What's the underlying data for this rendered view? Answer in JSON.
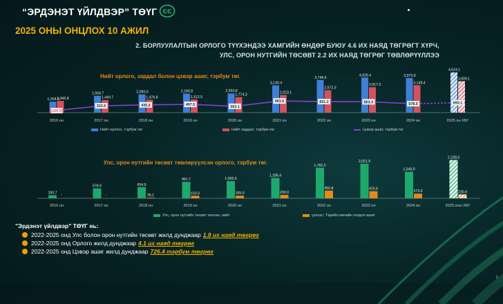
{
  "header": {
    "title": "“ЭРДЭНЭТ ҮЙЛДВЭР” ТӨҮГ",
    "slide_title": "2025 ОНЫ ОНЦЛОХ 10 АЖИЛ"
  },
  "headline": {
    "line1": "2. БОРЛУУЛАЛТЫН ОРЛОГО ТҮҮХЭНДЭЭ ХАМГИЙН ӨНДӨР БУЮУ 4.6 ИХ НАЯД ТӨГРӨГТ ХҮРЧ,",
    "line2": "УЛС, ОРОН НУТГИЙН ТӨСӨВТ 2.2 ИХ НАЯД ТӨГРӨГ ТӨВЛӨРҮҮЛЛЭЭ"
  },
  "colors": {
    "accent": "#f0b400",
    "revenue": "#3f7fd6",
    "costs": "#d4515f",
    "net_profit": "#8a3fd0",
    "budget": "#1fa86c",
    "dividend": "#e58a1a"
  },
  "chart_data": [
    {
      "type": "bar",
      "title": "Нийт орлого, зардал болон цэвэр ашиг, тэрбум төг.",
      "categories": [
        "2016 он",
        "2017 он",
        "2018 он",
        "2019 он",
        "2020 он",
        "2021 он",
        "2022 он",
        "2023 он",
        "2024 он",
        "2025 он ХБГ"
      ],
      "series": [
        {
          "name": "Нийт орлого, тэрбум.төг",
          "type": "bar",
          "values": [
            1258.0,
            1934.7,
            2090.0,
            2189.8,
            2203.8,
            3130.4,
            3746.6,
            4026.4,
            3973.9,
            4624.1
          ]
        },
        {
          "name": "Нийт зардал, тэрбум.төг",
          "type": "bar",
          "values": [
            1345.8,
            1449.7,
            1476.8,
            1512.5,
            1774.3,
            2023.1,
            2572.3,
            2917.3,
            3149.4,
            3609.1
          ]
        },
        {
          "name": "Цэвэр ашиг, тэрбум.төг",
          "type": "line",
          "values": [
            -126.5,
            323.5,
            435.5,
            497.5,
            263.1,
            903.5,
            831.2,
            803.0,
            578.5,
            693.1
          ]
        }
      ],
      "value_labels": {
        "revenue": [
          "1,258.0",
          "1,934.7",
          "2,090.0",
          "2,189.8",
          "2,203.8",
          "3,130.4",
          "3,746.6",
          "4,026.4",
          "3,973.9",
          "4,624.1"
        ],
        "costs": [
          "1,345.8",
          "1,449.7",
          "1,476.8",
          "1,512.5",
          "1,774.3",
          "2,023.1",
          "2,572.3",
          "2,917.3",
          "3,149.4",
          "3,609.1"
        ],
        "profit": [
          "(126.5)",
          "323.5",
          "435.5",
          "497.5",
          "263.1",
          "903.5",
          "831.2",
          "803.0",
          "578.5",
          "693.1"
        ]
      },
      "ylim": [
        -300,
        4700
      ],
      "legend_position": "bottom",
      "legend": [
        "Нийт орлого, тэрбум.төг",
        "Нийт зардал, тэрбум.төг",
        "Цэвэр ашиг, тэрбум.төг"
      ]
    },
    {
      "type": "bar",
      "title": "Улс, орон нутгийн төсөвт төвлөрүүлсэн орлого, тэрбум төг.",
      "categories": [
        "2016 он",
        "2017 он",
        "2018 он",
        "2019 он",
        "2020 он",
        "2021 он",
        "2022 он",
        "2023 он",
        "2024 он",
        "2025 оны ХБГ"
      ],
      "series": [
        {
          "name": "Улс, орон нутгийн төсөвт төлсөн, нийт",
          "values": [
            183.7,
            578.6,
            654.9,
            961.7,
            1005.5,
            1186.4,
            1782.2,
            2021.9,
            1549.0,
            2238.6
          ]
        },
        {
          "name": "үүнээс: Төрийн өмчийн ногдол ашиг",
          "values": [
            null,
            null,
            35.1,
            150.0,
            155.0,
            200.0,
            450.8,
            415.6,
            273.0,
            230.0
          ]
        }
      ],
      "value_labels": {
        "budget": [
          "183.7",
          "578.6",
          "654.9",
          "961.7",
          "1,005.5",
          "1,186.4",
          "1,782.2",
          "2,021.9",
          "1,549.0",
          "2,238.6"
        ],
        "dividend": [
          "-",
          "-",
          "35.1",
          "150.0",
          "155.0",
          "200.0",
          "450.8",
          "415.6",
          "273.0",
          "230.0"
        ]
      },
      "ylim": [
        0,
        2400
      ],
      "legend_position": "bottom",
      "legend": [
        "Улс, орон нутгийн төсөвт төлсөн, нийт",
        "үүнээс: Төрийн өмчийн ногдол ашиг"
      ]
    }
  ],
  "summary": {
    "heading": "\"Эрдэнэт үйлдвэр\" ТӨҮГ нь:",
    "items": [
      {
        "text": "2022-2025 онд Улс болон орон нутгийн төсөвт жилд дунджаар",
        "highlight": "1.8 их наяд төгрөг"
      },
      {
        "text": "2022-2025 онд Орлого жилд дунджаар",
        "highlight": "4.1 их наяд төгрөг"
      },
      {
        "text": "2022-2025 онд Цэвэр ашиг жилд дунджаар",
        "highlight": "726.4 тэрбум төгрөг"
      }
    ]
  },
  "page_number": "3"
}
